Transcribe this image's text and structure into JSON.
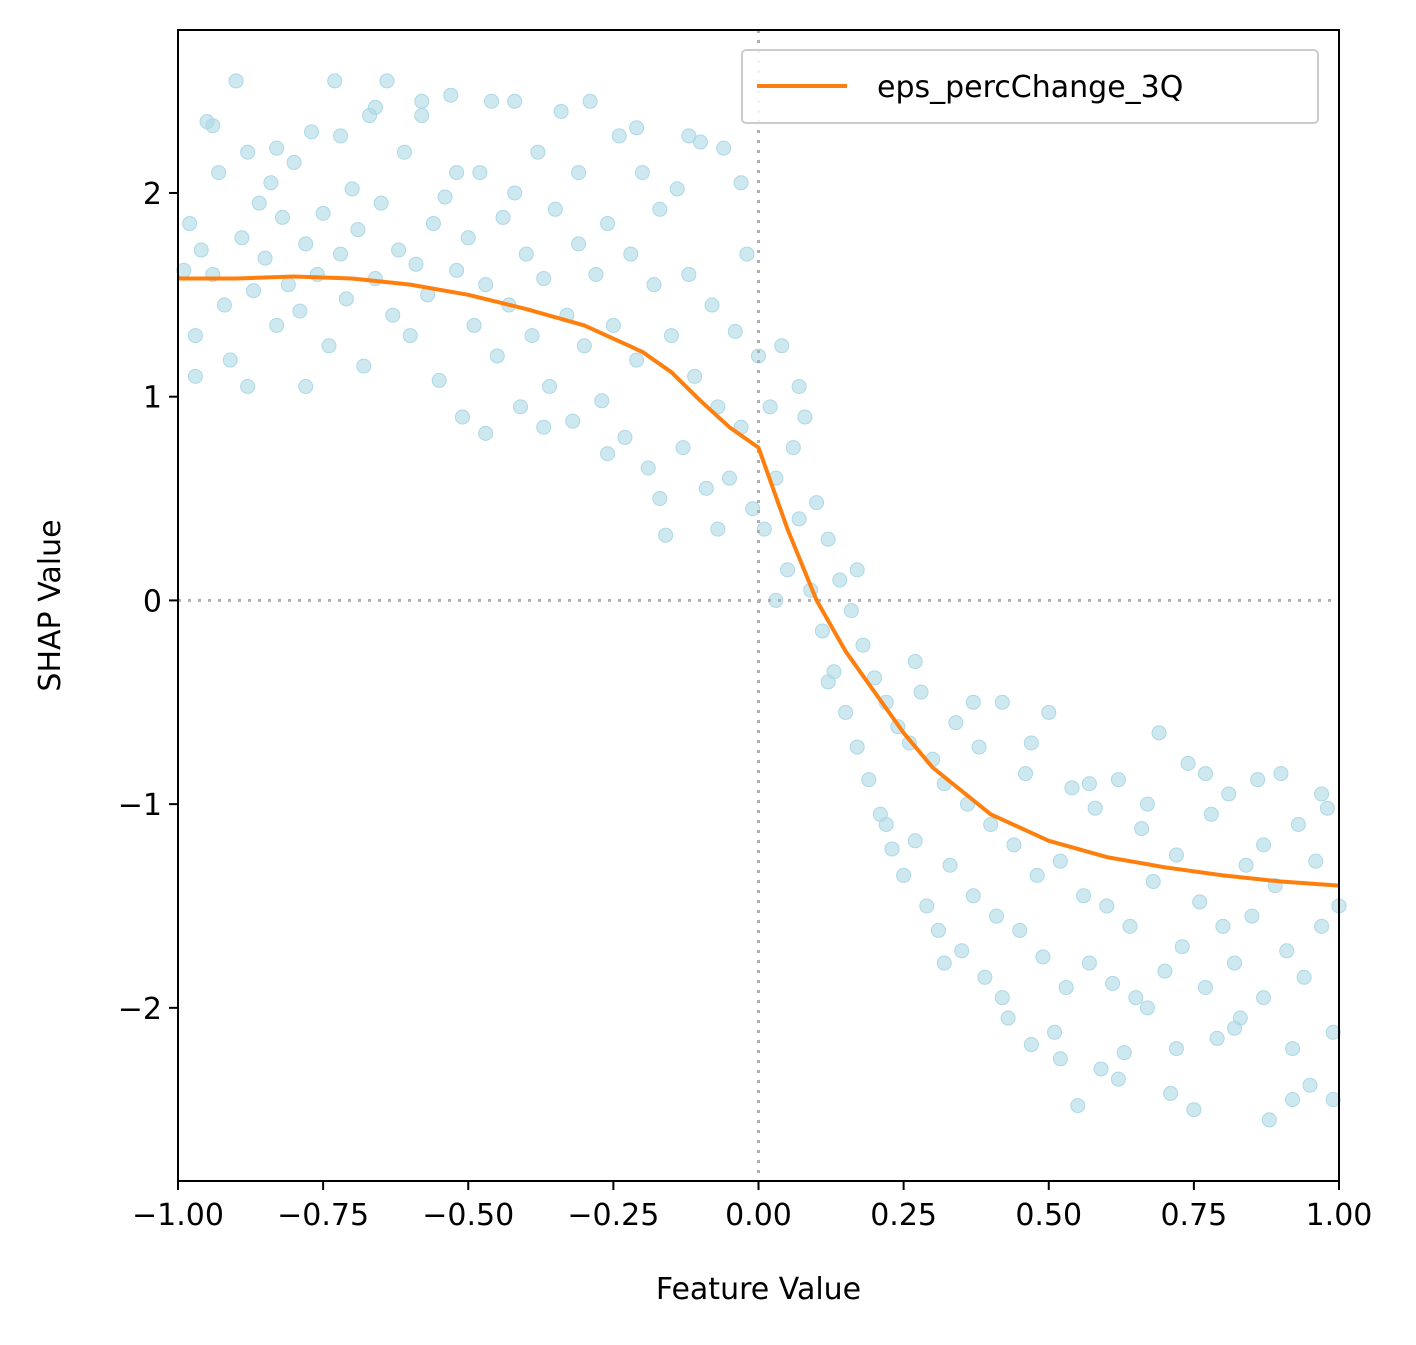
{
  "chart_data": {
    "type": "scatter",
    "title": "",
    "xlabel": "Feature Value",
    "ylabel": "SHAP Value",
    "xlim": [
      -1.0,
      1.0
    ],
    "ylim": [
      -2.85,
      2.8
    ],
    "x_ticks": [
      {
        "value": -1.0,
        "label": "−1.00"
      },
      {
        "value": -0.75,
        "label": "−0.75"
      },
      {
        "value": -0.5,
        "label": "−0.50"
      },
      {
        "value": -0.25,
        "label": "−0.25"
      },
      {
        "value": 0.0,
        "label": "0.00"
      },
      {
        "value": 0.25,
        "label": "0.25"
      },
      {
        "value": 0.5,
        "label": "0.50"
      },
      {
        "value": 0.75,
        "label": "0.75"
      },
      {
        "value": 1.0,
        "label": "1.00"
      }
    ],
    "y_ticks": [
      {
        "value": 2,
        "label": "2"
      },
      {
        "value": 1,
        "label": "1"
      },
      {
        "value": 0,
        "label": "0"
      },
      {
        "value": -1,
        "label": "−1"
      },
      {
        "value": -2,
        "label": "−2"
      }
    ],
    "grid": false,
    "reference_lines": {
      "x": 0,
      "y": 0,
      "style": "dotted",
      "color": "#b0b0b0"
    },
    "legend": {
      "position": "top-right",
      "entries": [
        "eps_percChange_3Q"
      ]
    },
    "scatter_color": "#add8e6",
    "scatter": [
      [
        -0.99,
        1.62
      ],
      [
        -0.98,
        1.85
      ],
      [
        -0.97,
        1.3
      ],
      [
        -0.96,
        1.72
      ],
      [
        -0.95,
        2.35
      ],
      [
        -0.94,
        1.6
      ],
      [
        -0.93,
        2.1
      ],
      [
        -0.92,
        1.45
      ],
      [
        -0.91,
        1.18
      ],
      [
        -0.9,
        2.55
      ],
      [
        -0.89,
        1.78
      ],
      [
        -0.88,
        2.2
      ],
      [
        -0.87,
        1.52
      ],
      [
        -0.86,
        1.95
      ],
      [
        -0.85,
        1.68
      ],
      [
        -0.84,
        2.05
      ],
      [
        -0.83,
        1.35
      ],
      [
        -0.82,
        1.88
      ],
      [
        -0.81,
        1.55
      ],
      [
        -0.8,
        2.15
      ],
      [
        -0.79,
        1.42
      ],
      [
        -0.78,
        1.75
      ],
      [
        -0.77,
        2.3
      ],
      [
        -0.76,
        1.6
      ],
      [
        -0.75,
        1.9
      ],
      [
        -0.74,
        1.25
      ],
      [
        -0.73,
        2.55
      ],
      [
        -0.72,
        1.7
      ],
      [
        -0.71,
        1.48
      ],
      [
        -0.7,
        2.02
      ],
      [
        -0.69,
        1.82
      ],
      [
        -0.68,
        1.15
      ],
      [
        -0.67,
        2.38
      ],
      [
        -0.66,
        1.58
      ],
      [
        -0.65,
        1.95
      ],
      [
        -0.64,
        2.55
      ],
      [
        -0.63,
        1.4
      ],
      [
        -0.62,
        1.72
      ],
      [
        -0.61,
        2.2
      ],
      [
        -0.6,
        1.3
      ],
      [
        -0.59,
        1.65
      ],
      [
        -0.58,
        2.45
      ],
      [
        -0.57,
        1.5
      ],
      [
        -0.56,
        1.85
      ],
      [
        -0.55,
        1.08
      ],
      [
        -0.54,
        1.98
      ],
      [
        -0.53,
        2.48
      ],
      [
        -0.52,
        1.62
      ],
      [
        -0.51,
        0.9
      ],
      [
        -0.5,
        1.78
      ],
      [
        -0.49,
        1.35
      ],
      [
        -0.48,
        2.1
      ],
      [
        -0.47,
        1.55
      ],
      [
        -0.46,
        2.45
      ],
      [
        -0.45,
        1.2
      ],
      [
        -0.44,
        1.88
      ],
      [
        -0.43,
        1.45
      ],
      [
        -0.42,
        2.0
      ],
      [
        -0.41,
        0.95
      ],
      [
        -0.4,
        1.7
      ],
      [
        -0.39,
        1.3
      ],
      [
        -0.38,
        2.2
      ],
      [
        -0.37,
        1.58
      ],
      [
        -0.36,
        1.05
      ],
      [
        -0.35,
        1.92
      ],
      [
        -0.34,
        2.4
      ],
      [
        -0.33,
        1.4
      ],
      [
        -0.32,
        0.88
      ],
      [
        -0.31,
        1.75
      ],
      [
        -0.3,
        1.25
      ],
      [
        -0.29,
        2.45
      ],
      [
        -0.28,
        1.6
      ],
      [
        -0.27,
        0.98
      ],
      [
        -0.26,
        1.85
      ],
      [
        -0.25,
        1.35
      ],
      [
        -0.24,
        2.28
      ],
      [
        -0.23,
        0.8
      ],
      [
        -0.22,
        1.7
      ],
      [
        -0.21,
        1.18
      ],
      [
        -0.2,
        2.1
      ],
      [
        -0.19,
        0.65
      ],
      [
        -0.18,
        1.55
      ],
      [
        -0.17,
        1.92
      ],
      [
        -0.16,
        0.32
      ],
      [
        -0.15,
        1.3
      ],
      [
        -0.14,
        2.02
      ],
      [
        -0.13,
        0.75
      ],
      [
        -0.12,
        1.6
      ],
      [
        -0.11,
        1.1
      ],
      [
        -0.1,
        2.25
      ],
      [
        -0.09,
        0.55
      ],
      [
        -0.08,
        1.45
      ],
      [
        -0.07,
        0.95
      ],
      [
        -0.06,
        2.22
      ],
      [
        -0.05,
        0.6
      ],
      [
        -0.04,
        1.32
      ],
      [
        -0.03,
        0.85
      ],
      [
        -0.02,
        1.7
      ],
      [
        -0.01,
        0.45
      ],
      [
        0.0,
        1.2
      ],
      [
        0.01,
        0.35
      ],
      [
        0.02,
        0.95
      ],
      [
        0.03,
        0.6
      ],
      [
        0.04,
        1.25
      ],
      [
        0.05,
        0.15
      ],
      [
        0.06,
        0.75
      ],
      [
        0.07,
        0.4
      ],
      [
        0.08,
        0.9
      ],
      [
        0.09,
        0.05
      ],
      [
        0.1,
        0.48
      ],
      [
        0.11,
        -0.15
      ],
      [
        0.12,
        0.3
      ],
      [
        0.13,
        -0.35
      ],
      [
        0.14,
        0.1
      ],
      [
        0.15,
        -0.55
      ],
      [
        0.16,
        -0.05
      ],
      [
        0.17,
        -0.72
      ],
      [
        0.18,
        -0.22
      ],
      [
        0.19,
        -0.88
      ],
      [
        0.2,
        -0.38
      ],
      [
        0.21,
        -1.05
      ],
      [
        0.22,
        -0.5
      ],
      [
        0.23,
        -1.22
      ],
      [
        0.24,
        -0.62
      ],
      [
        0.25,
        -1.35
      ],
      [
        0.26,
        -0.7
      ],
      [
        0.27,
        -1.18
      ],
      [
        0.28,
        -0.45
      ],
      [
        0.29,
        -1.5
      ],
      [
        0.3,
        -0.78
      ],
      [
        0.31,
        -1.62
      ],
      [
        0.32,
        -0.9
      ],
      [
        0.33,
        -1.3
      ],
      [
        0.34,
        -0.6
      ],
      [
        0.35,
        -1.72
      ],
      [
        0.36,
        -1.0
      ],
      [
        0.37,
        -1.45
      ],
      [
        0.38,
        -0.72
      ],
      [
        0.39,
        -1.85
      ],
      [
        0.4,
        -1.1
      ],
      [
        0.41,
        -1.55
      ],
      [
        0.42,
        -0.5
      ],
      [
        0.43,
        -2.05
      ],
      [
        0.44,
        -1.2
      ],
      [
        0.45,
        -1.62
      ],
      [
        0.46,
        -0.85
      ],
      [
        0.47,
        -2.18
      ],
      [
        0.48,
        -1.35
      ],
      [
        0.49,
        -1.75
      ],
      [
        0.5,
        -0.55
      ],
      [
        0.51,
        -2.12
      ],
      [
        0.52,
        -1.28
      ],
      [
        0.53,
        -1.9
      ],
      [
        0.54,
        -0.92
      ],
      [
        0.55,
        -2.48
      ],
      [
        0.56,
        -1.45
      ],
      [
        0.57,
        -1.78
      ],
      [
        0.58,
        -1.02
      ],
      [
        0.59,
        -2.3
      ],
      [
        0.6,
        -1.5
      ],
      [
        0.61,
        -1.88
      ],
      [
        0.62,
        -0.88
      ],
      [
        0.63,
        -2.22
      ],
      [
        0.64,
        -1.6
      ],
      [
        0.65,
        -1.95
      ],
      [
        0.66,
        -1.12
      ],
      [
        0.67,
        -2.0
      ],
      [
        0.68,
        -1.38
      ],
      [
        0.69,
        -0.65
      ],
      [
        0.7,
        -1.82
      ],
      [
        0.71,
        -2.42
      ],
      [
        0.72,
        -1.25
      ],
      [
        0.73,
        -1.7
      ],
      [
        0.74,
        -0.8
      ],
      [
        0.75,
        -2.5
      ],
      [
        0.76,
        -1.48
      ],
      [
        0.77,
        -1.9
      ],
      [
        0.78,
        -1.05
      ],
      [
        0.79,
        -2.15
      ],
      [
        0.8,
        -1.6
      ],
      [
        0.81,
        -0.95
      ],
      [
        0.82,
        -1.78
      ],
      [
        0.83,
        -2.05
      ],
      [
        0.84,
        -1.3
      ],
      [
        0.85,
        -1.55
      ],
      [
        0.86,
        -0.88
      ],
      [
        0.87,
        -1.95
      ],
      [
        0.88,
        -2.55
      ],
      [
        0.89,
        -1.4
      ],
      [
        0.9,
        -0.85
      ],
      [
        0.91,
        -1.72
      ],
      [
        0.92,
        -2.2
      ],
      [
        0.93,
        -1.1
      ],
      [
        0.94,
        -1.85
      ],
      [
        0.95,
        -2.38
      ],
      [
        0.96,
        -1.28
      ],
      [
        0.97,
        -1.6
      ],
      [
        0.98,
        -1.02
      ],
      [
        0.99,
        -2.12
      ],
      [
        1.0,
        -1.5
      ],
      [
        -0.97,
        1.1
      ],
      [
        -0.94,
        2.33
      ],
      [
        -0.88,
        1.05
      ],
      [
        -0.83,
        2.22
      ],
      [
        -0.78,
        1.05
      ],
      [
        -0.72,
        2.28
      ],
      [
        -0.66,
        2.42
      ],
      [
        -0.58,
        2.38
      ],
      [
        -0.52,
        2.1
      ],
      [
        -0.47,
        0.82
      ],
      [
        -0.42,
        2.45
      ],
      [
        -0.37,
        0.85
      ],
      [
        -0.31,
        2.1
      ],
      [
        -0.26,
        0.72
      ],
      [
        -0.21,
        2.32
      ],
      [
        -0.17,
        0.5
      ],
      [
        -0.12,
        2.28
      ],
      [
        -0.07,
        0.35
      ],
      [
        -0.03,
        2.05
      ],
      [
        0.03,
        0.0
      ],
      [
        0.07,
        1.05
      ],
      [
        0.12,
        -0.4
      ],
      [
        0.17,
        0.15
      ],
      [
        0.22,
        -1.1
      ],
      [
        0.27,
        -0.3
      ],
      [
        0.32,
        -1.78
      ],
      [
        0.37,
        -0.5
      ],
      [
        0.42,
        -1.95
      ],
      [
        0.47,
        -0.7
      ],
      [
        0.52,
        -2.25
      ],
      [
        0.57,
        -0.9
      ],
      [
        0.62,
        -2.35
      ],
      [
        0.67,
        -1.0
      ],
      [
        0.72,
        -2.2
      ],
      [
        0.77,
        -0.85
      ],
      [
        0.82,
        -2.1
      ],
      [
        0.87,
        -1.2
      ],
      [
        0.92,
        -2.45
      ],
      [
        0.97,
        -0.95
      ],
      [
        0.99,
        -2.45
      ]
    ],
    "series": [
      {
        "name": "eps_percChange_3Q",
        "color": "#ff7f0e",
        "x": [
          -1.0,
          -0.9,
          -0.8,
          -0.7,
          -0.6,
          -0.5,
          -0.4,
          -0.3,
          -0.2,
          -0.15,
          -0.1,
          -0.05,
          0.0,
          0.05,
          0.1,
          0.15,
          0.2,
          0.25,
          0.3,
          0.4,
          0.5,
          0.6,
          0.7,
          0.8,
          0.9,
          1.0
        ],
        "y": [
          1.58,
          1.58,
          1.59,
          1.58,
          1.55,
          1.5,
          1.43,
          1.35,
          1.22,
          1.12,
          0.98,
          0.85,
          0.75,
          0.35,
          0.0,
          -0.25,
          -0.45,
          -0.65,
          -0.82,
          -1.05,
          -1.18,
          -1.26,
          -1.31,
          -1.35,
          -1.38,
          -1.4
        ]
      }
    ]
  }
}
